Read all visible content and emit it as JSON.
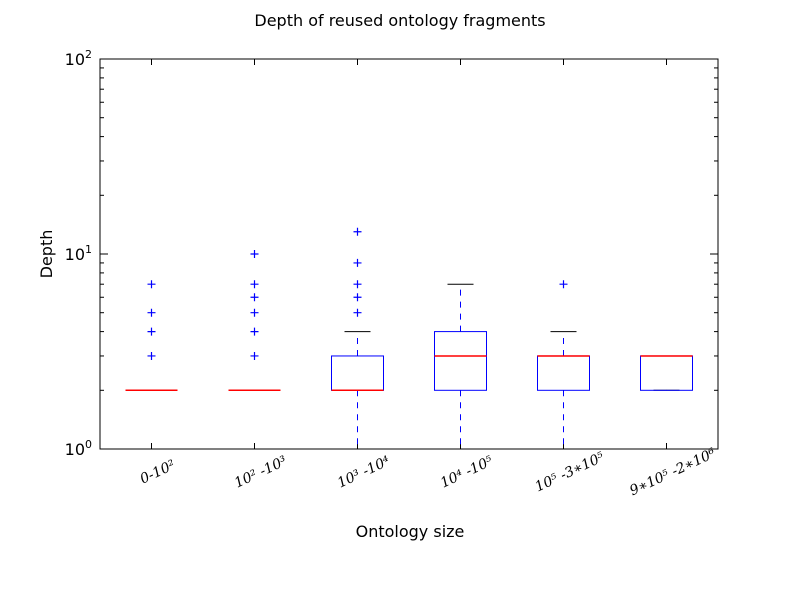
{
  "chart_data": {
    "type": "boxplot",
    "title": "Depth of reused ontology fragments",
    "xlabel": "Ontology size",
    "ylabel": "Depth",
    "yscale": "log",
    "ylim": [
      1,
      100
    ],
    "yticks": [
      1,
      10,
      100
    ],
    "ytick_labels": [
      {
        "base": "10",
        "exp": "0"
      },
      {
        "base": "10",
        "exp": "1"
      },
      {
        "base": "10",
        "exp": "2"
      }
    ],
    "categories": [
      "0-10²",
      "10² -10³",
      "10³ -10⁴",
      "10⁴ -10⁵",
      "10⁵ -3∗10⁵",
      "9∗10⁵ -2∗10⁶"
    ],
    "boxes": [
      {
        "q1": 2,
        "median": 2,
        "q3": 2,
        "whisker_low": 2,
        "whisker_high": 2,
        "fliers": [
          3,
          4,
          5,
          7
        ]
      },
      {
        "q1": 2,
        "median": 2,
        "q3": 2,
        "whisker_low": 2,
        "whisker_high": 2,
        "fliers": [
          3,
          4,
          5,
          6,
          7,
          10
        ]
      },
      {
        "q1": 2,
        "median": 2,
        "q3": 3,
        "whisker_low": 1,
        "whisker_high": 4,
        "fliers": [
          5,
          6,
          7,
          9,
          13
        ]
      },
      {
        "q1": 2,
        "median": 3,
        "q3": 4,
        "whisker_low": 1,
        "whisker_high": 7,
        "fliers": []
      },
      {
        "q1": 2,
        "median": 3,
        "q3": 3,
        "whisker_low": 1,
        "whisker_high": 4,
        "fliers": [
          7
        ]
      },
      {
        "q1": 2,
        "median": 3,
        "q3": 3,
        "whisker_low": 2,
        "whisker_high": 3,
        "fliers": []
      }
    ],
    "colors": {
      "box": "#0000ff",
      "median": "#ff0000",
      "cap": "#000000",
      "flier": "#0000ff"
    },
    "grid": false,
    "legend": "none"
  }
}
